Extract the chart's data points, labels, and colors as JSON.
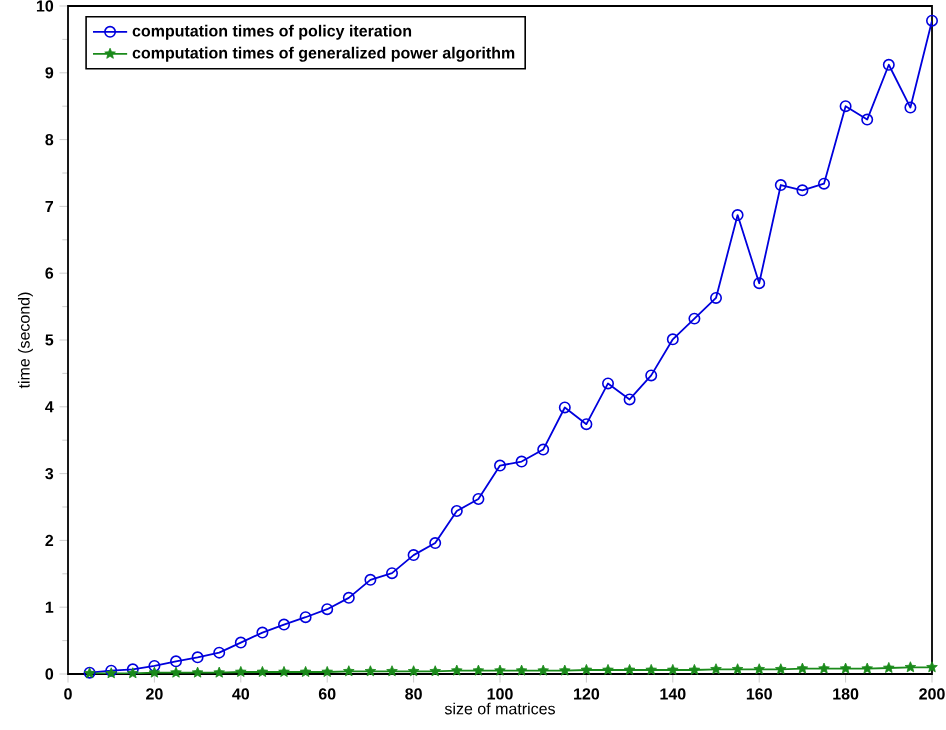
{
  "chart_data": {
    "type": "line",
    "xlabel": "size of matrices",
    "ylabel": "time (second)",
    "x": [
      5,
      10,
      15,
      20,
      25,
      30,
      35,
      40,
      45,
      50,
      55,
      60,
      65,
      70,
      75,
      80,
      85,
      90,
      95,
      100,
      105,
      110,
      115,
      120,
      125,
      130,
      135,
      140,
      145,
      150,
      155,
      160,
      165,
      170,
      175,
      180,
      185,
      190,
      195,
      200
    ],
    "series": [
      {
        "name": "computation times of policy iteration",
        "color": "#0000dd",
        "marker": "circle",
        "values": [
          0.02,
          0.05,
          0.07,
          0.12,
          0.19,
          0.25,
          0.32,
          0.47,
          0.62,
          0.74,
          0.85,
          0.97,
          1.14,
          1.41,
          1.51,
          1.78,
          1.96,
          2.44,
          2.62,
          3.12,
          3.18,
          3.36,
          3.99,
          3.74,
          4.35,
          4.11,
          4.47,
          5.01,
          5.32,
          5.63,
          6.87,
          5.85,
          7.32,
          7.24,
          7.34,
          8.5,
          8.3,
          9.12,
          8.48,
          9.78
        ]
      },
      {
        "name": "computation times of generalized power algorithm",
        "color": "#1a8a1a",
        "marker": "star",
        "values": [
          0.01,
          0.01,
          0.01,
          0.02,
          0.02,
          0.02,
          0.02,
          0.03,
          0.03,
          0.03,
          0.03,
          0.03,
          0.04,
          0.04,
          0.04,
          0.04,
          0.04,
          0.05,
          0.05,
          0.05,
          0.05,
          0.05,
          0.05,
          0.06,
          0.06,
          0.06,
          0.06,
          0.06,
          0.06,
          0.07,
          0.07,
          0.07,
          0.07,
          0.08,
          0.08,
          0.08,
          0.08,
          0.09,
          0.1,
          0.1
        ]
      }
    ],
    "xlim": [
      0,
      200
    ],
    "ylim": [
      0,
      10
    ],
    "xticks": [
      0,
      20,
      40,
      60,
      80,
      100,
      120,
      140,
      160,
      180,
      200
    ],
    "yticks": [
      0,
      1,
      2,
      3,
      4,
      5,
      6,
      7,
      8,
      9,
      10
    ],
    "grid": false,
    "legend": "top left",
    "line_style": "solid"
  }
}
